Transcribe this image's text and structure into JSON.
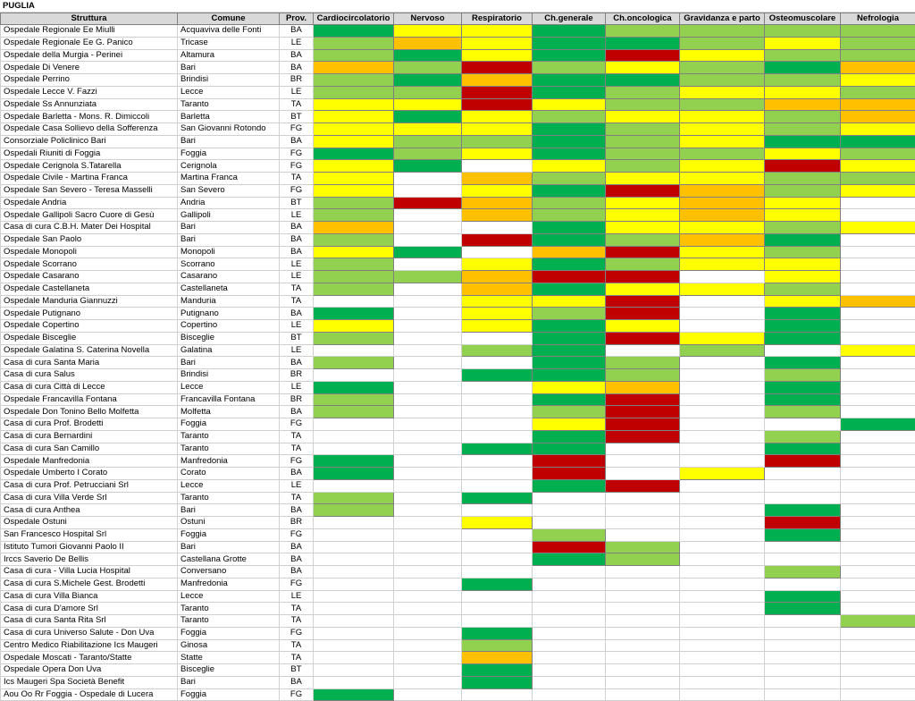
{
  "sheet_title": "PUGLIA",
  "columns": [
    "Struttura",
    "Comune",
    "Prov.",
    "Cardiocircolatorio",
    "Nervoso",
    "Respiratorio",
    "Ch.generale",
    "Ch.oncologica",
    "Gravidanza e parto",
    "Osteomuscolare",
    "Nefrologia"
  ],
  "legend_colors": {
    "G": "#00b050",
    "L": "#92d050",
    "Y": "#ffff00",
    "O": "#ffc000",
    "R": "#c00000",
    "W": "#ffffff"
  },
  "rows": [
    [
      "Ospedale Regionale Ee  Miulli",
      "Acquaviva delle Fonti",
      "BA",
      "GYYGLLLL"
    ],
    [
      "Ospedale Regionale Ee  G. Panico",
      "Tricase",
      "LE",
      "LOYGGLYL"
    ],
    [
      "Ospedale della Murgia - Perinei",
      "Altamura",
      "BA",
      "LGYGRYLL"
    ],
    [
      "Ospedale Di Venere",
      "Bari",
      "BA",
      "OLRLYLGO"
    ],
    [
      "Ospedale Perrino",
      "Brindisi",
      "BR",
      "LGOGGLLY"
    ],
    [
      "Ospedale Lecce  V. Fazzi",
      "Lecce",
      "LE",
      "LLRGLYYL"
    ],
    [
      "Ospedale Ss Annunziata",
      "Taranto",
      "TA",
      "YYRYLLOO"
    ],
    [
      "Ospedale Barletta -  Mons. R. Dimiccoli",
      "Barletta",
      "BT",
      "YGYLYYLO"
    ],
    [
      "Ospedale Casa Sollievo della Sofferenza",
      "San Giovanni Rotondo",
      "FG",
      "YYYGLYLY"
    ],
    [
      "Consorziale Policlinico Bari",
      "Bari",
      "BA",
      "YLLGLYGG"
    ],
    [
      "Ospedali Riuniti di Foggia",
      "Foggia",
      "FG",
      "GLYGLLYL"
    ],
    [
      "Ospedale Cerignola S.Tatarella",
      "Cerignola",
      "FG",
      "YGWYLYRY"
    ],
    [
      "Ospedale Civile - Martina Franca",
      "Martina Franca",
      "TA",
      "YWOLYYLL"
    ],
    [
      "Ospedale San Severo - Teresa Masselli",
      "San Severo",
      "FG",
      "YWYGROLY"
    ],
    [
      "Ospedale Andria",
      "Andria",
      "BT",
      "LROLYOYW"
    ],
    [
      "Ospedale Gallipoli  Sacro Cuore di Gesù",
      "Gallipoli",
      "LE",
      "LWOLYOYW"
    ],
    [
      "Casa di cura C.B.H. Mater Dei Hospital",
      "Bari",
      "BA",
      "OWWGYYLY"
    ],
    [
      "Ospedale San Paolo",
      "Bari",
      "BA",
      "LWRGLOGW"
    ],
    [
      "Ospedale Monopoli",
      "Monopoli",
      "BA",
      "YGWORYLW"
    ],
    [
      "Ospedale Scorrano",
      "Scorrano",
      "LE",
      "LWYGLYYW"
    ],
    [
      "Ospedale Casarano",
      "Casarano",
      "LE",
      "LLORRWYW"
    ],
    [
      "Ospedale Castellaneta",
      "Castellaneta",
      "TA",
      "LWOGYYLW"
    ],
    [
      "Ospedale Manduria  Giannuzzi",
      "Manduria",
      "TA",
      "WWYYRWYO"
    ],
    [
      "Ospedale Putignano",
      "Putignano",
      "BA",
      "GWYLRWGW"
    ],
    [
      "Ospedale Copertino",
      "Copertino",
      "LE",
      "YWYGYWGW"
    ],
    [
      "Ospedale Bisceglie",
      "Bisceglie",
      "BT",
      "LWWGRYGW"
    ],
    [
      "Ospedale Galatina  S. Caterina Novella",
      "Galatina",
      "LE",
      "WWLGWLWY"
    ],
    [
      "Casa di cura Santa Maria",
      "Bari",
      "BA",
      "LWWGLWGW"
    ],
    [
      "Casa di cura  Salus",
      "Brindisi",
      "BR",
      "WWGGLWLW"
    ],
    [
      "Casa di cura Città di Lecce",
      "Lecce",
      "LE",
      "GWWYOWGW"
    ],
    [
      "Ospedale  Francavilla Fontana",
      "Francavilla Fontana",
      "BR",
      "LWWGRWGW"
    ],
    [
      "Ospedale Don Tonino Bello Molfetta",
      "Molfetta",
      "BA",
      "LWWLRWLW"
    ],
    [
      "Casa di cura Prof. Brodetti",
      "Foggia",
      "FG",
      "WWWYRWWG"
    ],
    [
      "Casa di cura Bernardini",
      "Taranto",
      "TA",
      "WWWGRWLW"
    ],
    [
      "Casa di cura San Camillo",
      "Taranto",
      "TA",
      "WWGGWWGW"
    ],
    [
      "Ospedale Manfredonia",
      "Manfredonia",
      "FG",
      "GWWRWWRW"
    ],
    [
      "Ospedale Umberto I Corato",
      "Corato",
      "BA",
      "GWWRWYWW"
    ],
    [
      "Casa di cura  Prof. Petrucciani  Srl",
      "Lecce",
      "LE",
      "WWWGRWWW"
    ],
    [
      "Casa di cura Villa Verde Srl",
      "Taranto",
      "TA",
      "LWGWWWWW"
    ],
    [
      "Casa di cura Anthea",
      "Bari",
      "BA",
      "LWWWWWGW"
    ],
    [
      "Ospedale Ostuni",
      "Ostuni",
      "BR",
      "WWYWWWRW"
    ],
    [
      "San Francesco Hospital Srl",
      "Foggia",
      "FG",
      "WWWLWWGW"
    ],
    [
      "Istituto Tumori Giovanni Paolo II",
      "Bari",
      "BA",
      "WWWRLWWW"
    ],
    [
      "Irccs  Saverio De Bellis",
      "Castellana Grotte",
      "BA",
      "WWWGLWWW"
    ],
    [
      "Casa di cura - Villa Lucia Hospital",
      "Conversano",
      "BA",
      "WWWWWWLW"
    ],
    [
      "Casa di cura  S.Michele  Gest. Brodetti",
      "Manfredonia",
      "FG",
      "WWGWWWWW"
    ],
    [
      "Casa di cura Villa Bianca",
      "Lecce",
      "LE",
      "WWWWWWGW"
    ],
    [
      "Casa di cura D'amore Srl",
      "Taranto",
      "TA",
      "WWWWWWGW"
    ],
    [
      "Casa di cura Santa Rita Srl",
      "Taranto",
      "TA",
      "WWWWWWWL"
    ],
    [
      "Casa di cura Universo Salute - Don Uva",
      "Foggia",
      "FG",
      "WWGWWWWW"
    ],
    [
      "Centro Medico Riabilitazione Ics Maugeri",
      "Ginosa",
      "TA",
      "WWLWWWWW"
    ],
    [
      "Ospedale Moscati - Taranto/Statte",
      "Statte",
      "TA",
      "WWOWWWWW"
    ],
    [
      "Ospedale Opera Don Uva",
      "Bisceglie",
      "BT",
      "WWGWWWWW"
    ],
    [
      "Ics Maugeri Spa Società Benefit",
      "Bari",
      "BA",
      "WWGWWWWW"
    ],
    [
      "Aou Oo Rr Foggia - Ospedale di Lucera",
      "Foggia",
      "FG",
      "GWWWWWWW"
    ]
  ]
}
